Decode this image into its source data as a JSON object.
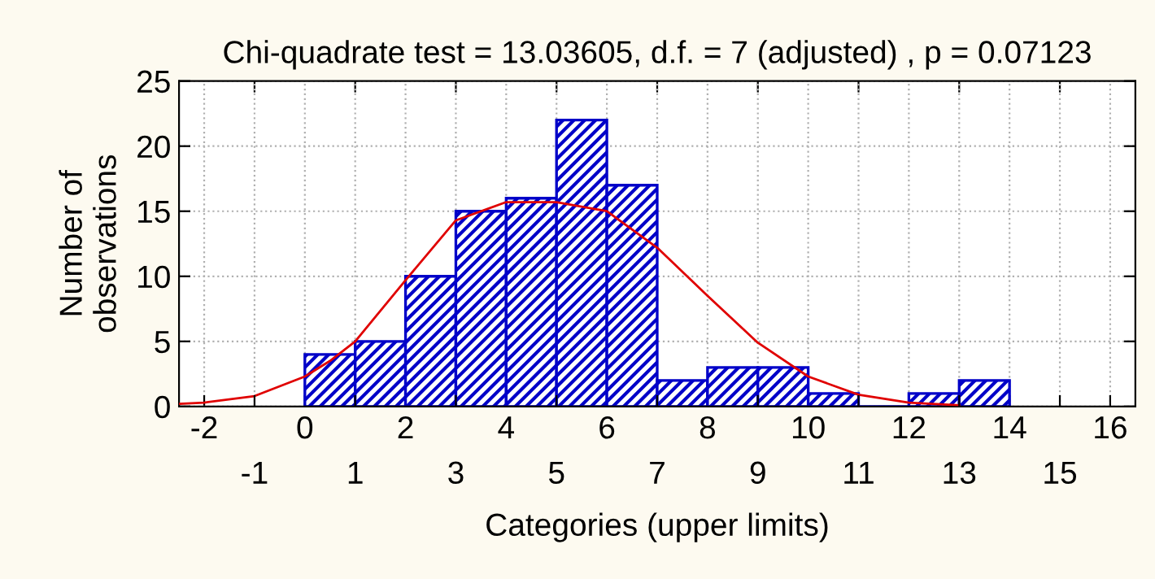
{
  "chart_data": {
    "type": "histogram",
    "title": "Chi-quadrate test = 13.03605, d.f. = 7 (adjusted) , p = 0.07123",
    "xlabel": "Categories (upper limits)",
    "ylabel": "Number of\nobservations",
    "bins": [
      0,
      1,
      2,
      3,
      4,
      5,
      6,
      7,
      8,
      9,
      10,
      11,
      12,
      13,
      14
    ],
    "series": [
      {
        "color": "#0000c8",
        "values": [
          4,
          5,
          10,
          15,
          16,
          22,
          17,
          2,
          3,
          3,
          1,
          0,
          1,
          2
        ]
      },
      {
        "type": "line",
        "color": "#e00000",
        "x": [
          -2.5,
          -2,
          -1,
          0,
          0.5,
          1,
          2,
          3,
          4,
          5,
          6,
          7,
          8,
          9,
          10,
          11,
          12,
          13
        ],
        "values": [
          0.2,
          0.3,
          0.8,
          2.3,
          3.5,
          5.0,
          9.7,
          14.3,
          15.7,
          15.7,
          15.0,
          12.2,
          8.5,
          4.9,
          2.3,
          0.9,
          0.3,
          0.1
        ]
      }
    ],
    "xlim": [
      -2.5,
      16.5
    ],
    "xticks": [
      -2,
      0,
      2,
      4,
      6,
      8,
      10,
      12,
      14,
      16
    ],
    "x2lim": [
      -2.5,
      16.5
    ],
    "x2ticks": [
      -1,
      1,
      3,
      5,
      7,
      9,
      11,
      13,
      15
    ],
    "ylim": [
      0,
      25
    ],
    "yticks": [
      0,
      5,
      10,
      15,
      20,
      25
    ],
    "grid": true,
    "marker": "none",
    "line_style": "solid"
  }
}
